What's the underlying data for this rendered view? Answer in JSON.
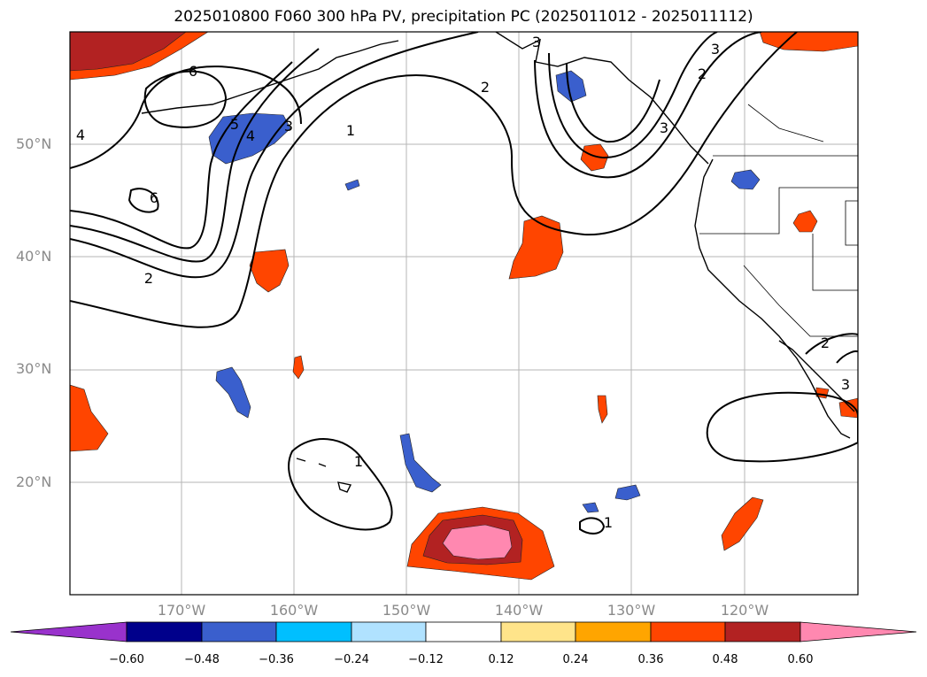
{
  "title": "2025010800 F060 300 hPa PV, precipitation PC (2025011012 - 2025011112)",
  "lat_labels": [
    "50°N",
    "40°N",
    "30°N",
    "20°N"
  ],
  "lon_labels": [
    "170°W",
    "160°W",
    "150°W",
    "140°W",
    "130°W",
    "120°W"
  ],
  "contour_labels": [
    "6",
    "4",
    "5",
    "4",
    "3",
    "1",
    "2",
    "2",
    "3",
    "3",
    "6",
    "2",
    "1",
    "1",
    "2",
    "3",
    "3"
  ],
  "colorbar": {
    "ticks": [
      "−0.60",
      "−0.48",
      "−0.36",
      "−0.24",
      "−0.12",
      "0.12",
      "0.24",
      "0.36",
      "0.48",
      "0.60"
    ],
    "colors": [
      "#9932cc",
      "#00008b",
      "#3a5fcd",
      "#00bfff",
      "#b0e2ff",
      "#ffffff",
      "#ffe48a",
      "#ffa500",
      "#ff4500",
      "#b22222",
      "#ff88b0"
    ]
  }
}
